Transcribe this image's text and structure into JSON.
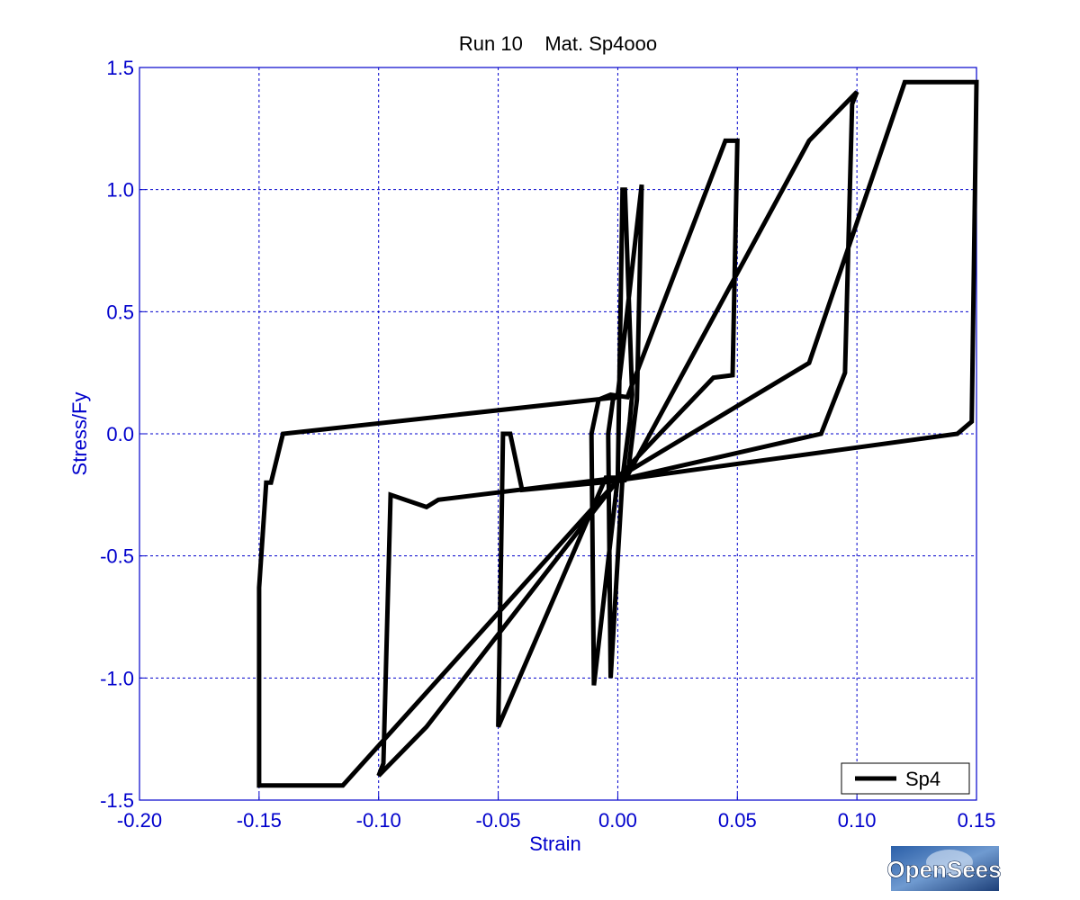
{
  "chart_data": {
    "type": "line",
    "title": "Run 10    Mat. Sp4ooo",
    "xlabel": "Strain",
    "ylabel": "Stress/Fy",
    "xlim": [
      -0.2,
      0.15
    ],
    "ylim": [
      -1.5,
      1.5
    ],
    "xticks": [
      -0.2,
      -0.15,
      -0.1,
      -0.05,
      0.0,
      0.05,
      0.1,
      0.15
    ],
    "xtick_labels": [
      "-0.20",
      "-0.15",
      "-0.10",
      "-0.05",
      "0.00",
      "0.05",
      "0.10",
      "0.15"
    ],
    "yticks": [
      -1.5,
      -1.0,
      -0.5,
      0.0,
      0.5,
      1.0,
      1.5
    ],
    "ytick_labels": [
      "-1.5",
      "-1.0",
      "-0.5",
      "0.0",
      "0.5",
      "1.0",
      "1.5"
    ],
    "grid": true,
    "legend_position": "bottom-right",
    "series": [
      {
        "name": "Sp4",
        "color": "#000000",
        "x": [
          0,
          0.002,
          0.003,
          0.006,
          0.005,
          0.002,
          -0.003,
          -0.004,
          -0.002,
          0.0,
          0.01,
          0.008,
          0.004,
          0.0,
          -0.01,
          -0.011,
          -0.008,
          -0.003,
          0.004,
          0.045,
          0.05,
          0.048,
          0.04,
          0.0,
          -0.005,
          -0.05,
          -0.048,
          -0.045,
          -0.04,
          0.003,
          0.08,
          0.1,
          0.098,
          0.095,
          0.085,
          0.0,
          -0.08,
          -0.1,
          -0.098,
          -0.095,
          -0.08,
          -0.075,
          0.0,
          0.08,
          0.12,
          0.15,
          0.15,
          0.148,
          0.142,
          0.0,
          -0.115,
          -0.15,
          -0.15,
          -0.147,
          -0.145,
          -0.14,
          0.0
        ],
        "y": [
          -0.18,
          1.0,
          1.0,
          0.16,
          0.05,
          -0.18,
          -1.0,
          0.0,
          0.14,
          0.16,
          1.02,
          0.14,
          -0.18,
          -0.18,
          -1.03,
          0.0,
          0.14,
          0.16,
          0.15,
          1.2,
          1.2,
          0.24,
          0.23,
          -0.18,
          -0.18,
          -1.2,
          0.0,
          0.0,
          -0.23,
          -0.19,
          1.2,
          1.4,
          1.35,
          0.25,
          0.0,
          -0.19,
          -1.2,
          -1.4,
          -1.35,
          -0.25,
          -0.3,
          -0.27,
          -0.18,
          0.29,
          1.44,
          1.44,
          1.44,
          0.05,
          0.0,
          -0.19,
          -1.44,
          -1.44,
          -0.63,
          -0.2,
          -0.2,
          0.0,
          0.15
        ]
      }
    ]
  },
  "logo_text": "OpenSees"
}
